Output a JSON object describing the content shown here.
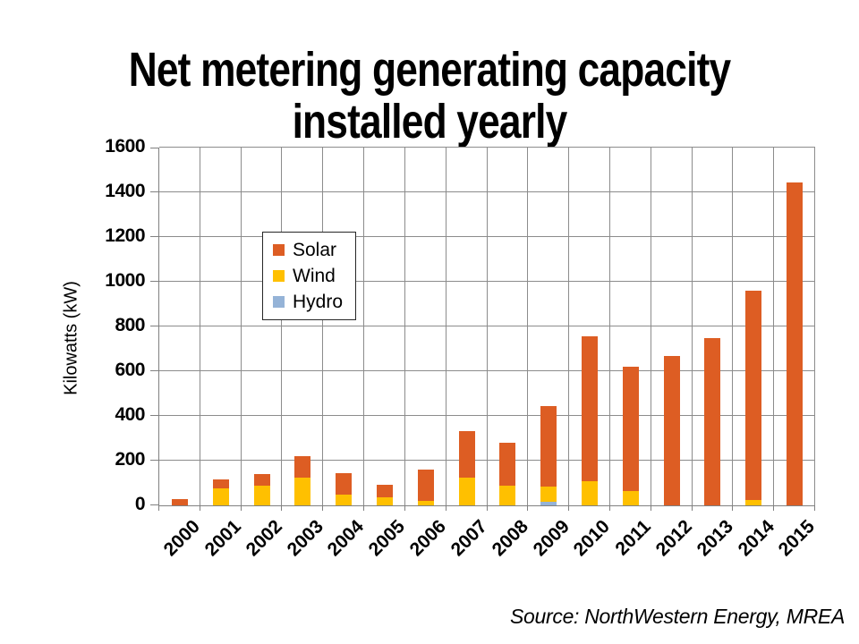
{
  "slide": {
    "title_lines": [
      "Net metering generating capacity",
      "installed yearly"
    ],
    "source_note": "Source: NorthWestern Energy, MREA"
  },
  "chart_data": {
    "type": "bar",
    "stacked": true,
    "title": "Net metering generating capacity installed yearly",
    "xlabel": "",
    "ylabel": "Kilowatts (kW)",
    "ylim": [
      0,
      1600
    ],
    "ytick_step": 200,
    "yticks": [
      0,
      200,
      400,
      600,
      800,
      1000,
      1200,
      1400,
      1600
    ],
    "grid": true,
    "categories": [
      "2000",
      "2001",
      "2002",
      "2003",
      "2004",
      "2005",
      "2006",
      "2007",
      "2008",
      "2009",
      "2010",
      "2011",
      "2012",
      "2013",
      "2014",
      "2015"
    ],
    "series": [
      {
        "name": "Solar",
        "color": "#DD5D23",
        "values": [
          30,
          40,
          50,
          95,
          95,
          55,
          140,
          205,
          190,
          360,
          645,
          555,
          670,
          750,
          935,
          1445
        ]
      },
      {
        "name": "Wind",
        "color": "#FFC000",
        "values": [
          0,
          75,
          90,
          125,
          50,
          35,
          20,
          125,
          90,
          70,
          110,
          65,
          0,
          0,
          25,
          0
        ]
      },
      {
        "name": "Hydro",
        "color": "#95B3D7",
        "values": [
          0,
          0,
          0,
          0,
          0,
          0,
          0,
          0,
          0,
          15,
          0,
          0,
          0,
          0,
          0,
          0
        ]
      }
    ],
    "stack_order_bottom_to_top": [
      "Hydro",
      "Wind",
      "Solar"
    ],
    "legend": {
      "entries": [
        "Solar",
        "Wind",
        "Hydro"
      ],
      "position": "inside-upper-left"
    }
  },
  "colors": {
    "solar": "#DD5D23",
    "wind": "#FFC000",
    "hydro": "#95B3D7",
    "gridline": "#8C8C8C",
    "axis": "#808080",
    "text": "#000000",
    "background": "#FFFFFF"
  }
}
